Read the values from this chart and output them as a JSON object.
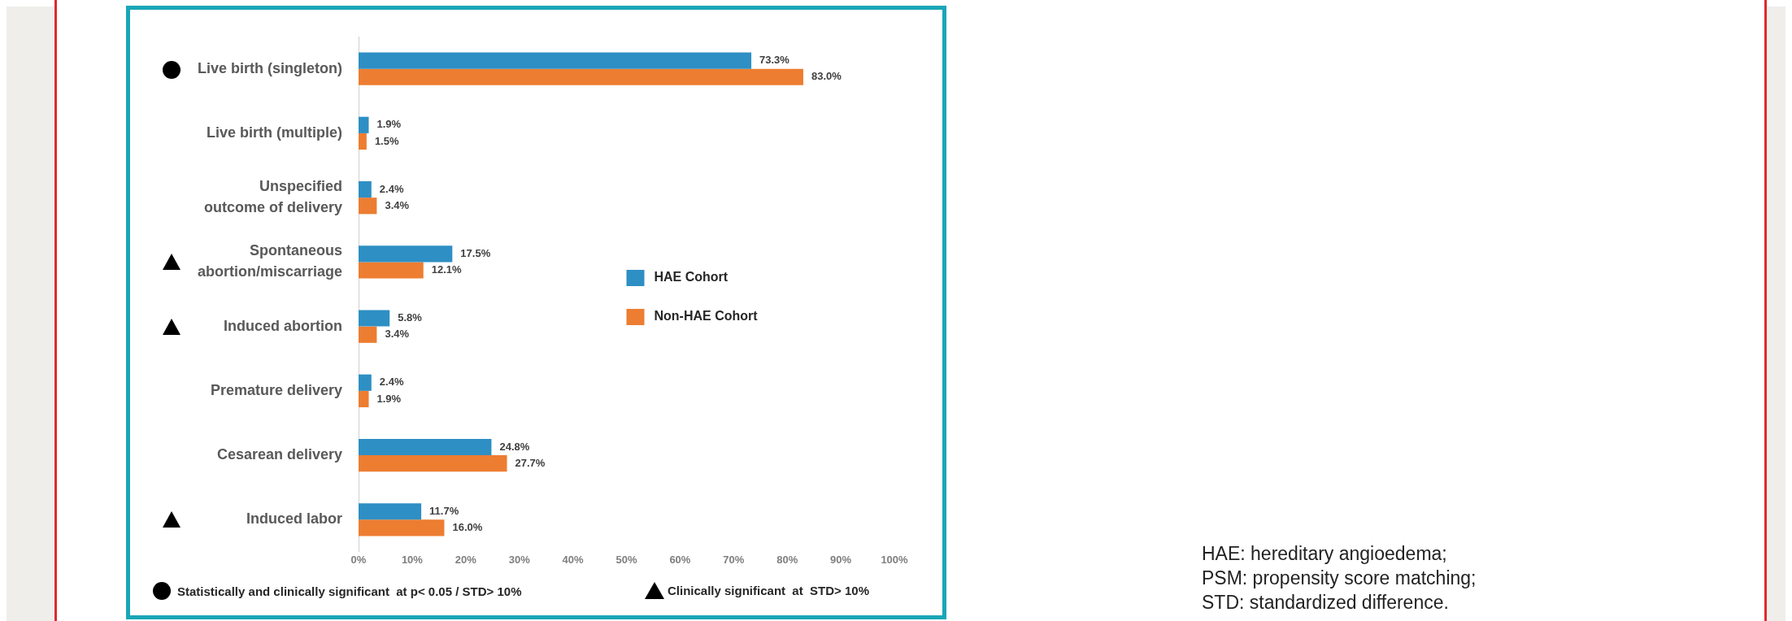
{
  "chart_data": {
    "type": "bar",
    "orientation": "horizontal",
    "categories": [
      "Live birth (singleton)",
      "Live birth (multiple)",
      "Unspecified outcome of delivery",
      "Spontaneous abortion/miscarriage",
      "Induced abortion",
      "Premature delivery",
      "Cesarean delivery",
      "Induced labor"
    ],
    "series": [
      {
        "name": "HAE Cohort",
        "color": "#2e8fc4",
        "values": [
          73.3,
          1.9,
          2.4,
          17.5,
          5.8,
          2.4,
          24.8,
          11.7
        ],
        "value_labels": [
          "73.3%",
          "1.9%",
          "2.4%",
          "17.5%",
          "5.8%",
          "2.4%",
          "24.8%",
          "11.7%"
        ]
      },
      {
        "name": "Non-HAE Cohort",
        "color": "#ed7d31",
        "values": [
          83.0,
          1.5,
          3.4,
          12.1,
          3.4,
          1.9,
          27.7,
          16.0
        ],
        "value_labels": [
          "83.0%",
          "1.5%",
          "3.4%",
          "12.1%",
          "3.4%",
          "1.9%",
          "27.7%",
          "16.0%"
        ]
      }
    ],
    "xlim": [
      0,
      100
    ],
    "xticks": [
      {
        "value": 0,
        "label": "0%"
      },
      {
        "value": 10,
        "label": "10%"
      },
      {
        "value": 20,
        "label": "20%"
      },
      {
        "value": 30,
        "label": "30%"
      },
      {
        "value": 40,
        "label": "40%"
      },
      {
        "value": 50,
        "label": "50%"
      },
      {
        "value": 60,
        "label": "60%"
      },
      {
        "value": 70,
        "label": "70%"
      },
      {
        "value": 80,
        "label": "80%"
      },
      {
        "value": 90,
        "label": "90%"
      },
      {
        "value": 100,
        "label": "100%"
      }
    ],
    "grid": false,
    "legend": "right",
    "annotations": [
      "Statistically and clinically significant  at p< 0.05 / STD> 10%",
      "Clinically significant  at  STD> 10%",
      "HAE: hereditary angioedema;",
      "PSM: propensity score matching;",
      "STD: standardized difference."
    ]
  }
}
